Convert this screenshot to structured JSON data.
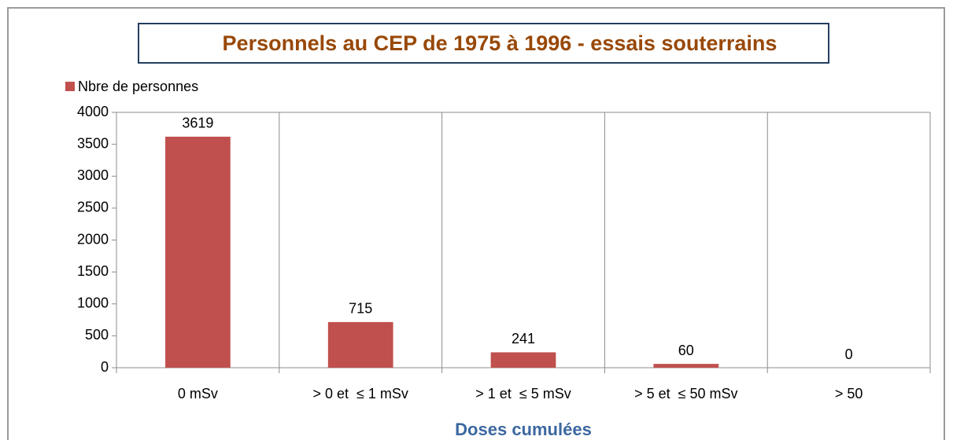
{
  "chart_data": {
    "type": "bar",
    "title": "Personnels au CEP de 1975 à 1996 - essais souterrains",
    "x_label": "Doses cumulées",
    "categories": [
      "0 mSv",
      "> 0 et  ≤ 1 mSv",
      "> 1 et  ≤ 5 mSv",
      "> 5 et  ≤ 50 mSv",
      "> 50"
    ],
    "series": [
      {
        "name": "Nbre de personnes",
        "color": "#c0504d",
        "values": [
          3619,
          715,
          241,
          60,
          0
        ]
      }
    ],
    "ylim": [
      0,
      4000
    ],
    "yticks": [
      0,
      500,
      1000,
      1500,
      2000,
      2500,
      3000,
      3500,
      4000
    ],
    "legend": "top-left"
  }
}
